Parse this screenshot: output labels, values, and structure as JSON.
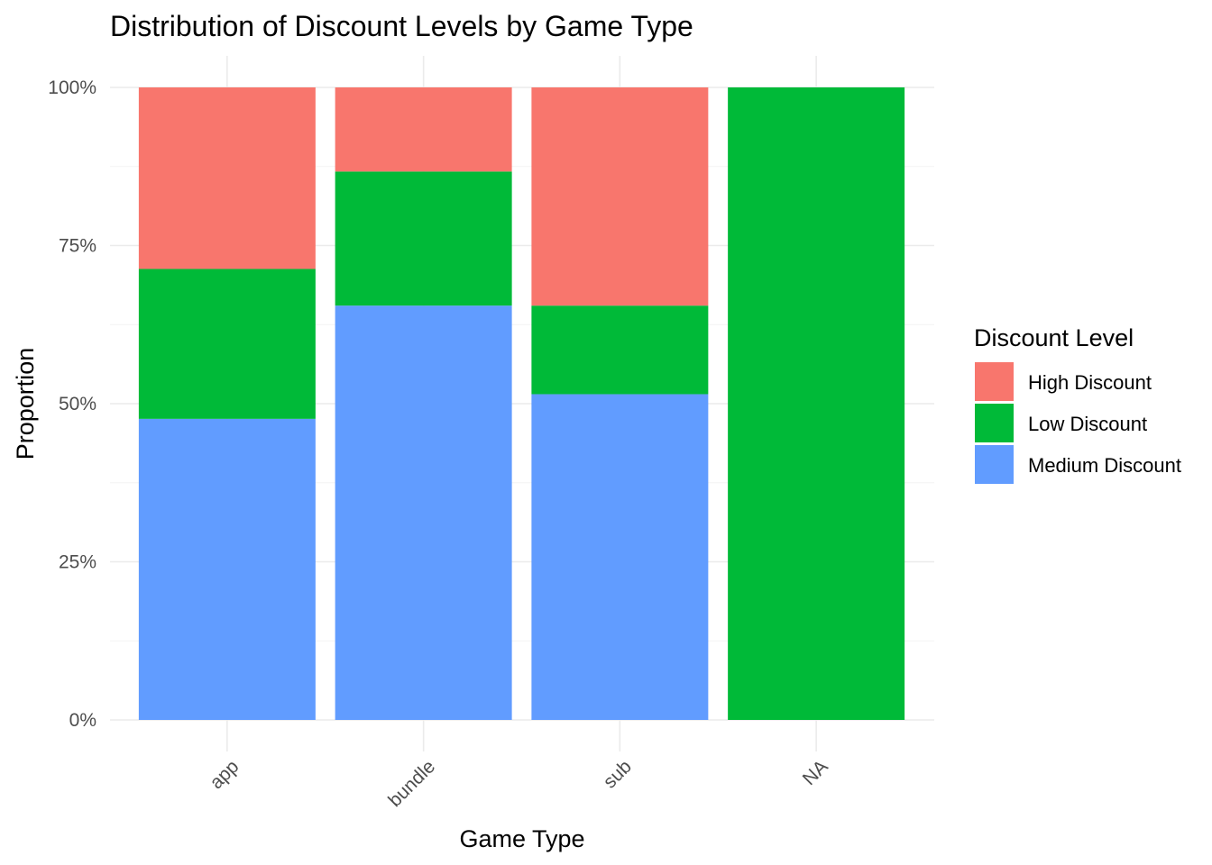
{
  "chart_data": {
    "type": "bar",
    "stacked": true,
    "normalized": true,
    "title": "Distribution of Discount Levels by Game Type",
    "xlabel": "Game Type",
    "ylabel": "Proportion",
    "categories": [
      "app",
      "bundle",
      "sub",
      "NA"
    ],
    "series": [
      {
        "name": "High Discount",
        "color": "#F8766D",
        "values": [
          0.287,
          0.133,
          0.345,
          0.0
        ]
      },
      {
        "name": "Low Discount",
        "color": "#00BA38",
        "values": [
          0.237,
          0.212,
          0.14,
          1.0
        ]
      },
      {
        "name": "Medium Discount",
        "color": "#619CFF",
        "values": [
          0.476,
          0.655,
          0.515,
          0.0
        ]
      }
    ],
    "ylim": [
      0,
      1
    ],
    "yticks": [
      0,
      0.25,
      0.5,
      0.75,
      1.0
    ],
    "ytick_labels": [
      "0%",
      "25%",
      "50%",
      "75%",
      "100%"
    ],
    "grid": true,
    "legend": {
      "title": "Discount Level",
      "placement": "right"
    }
  }
}
